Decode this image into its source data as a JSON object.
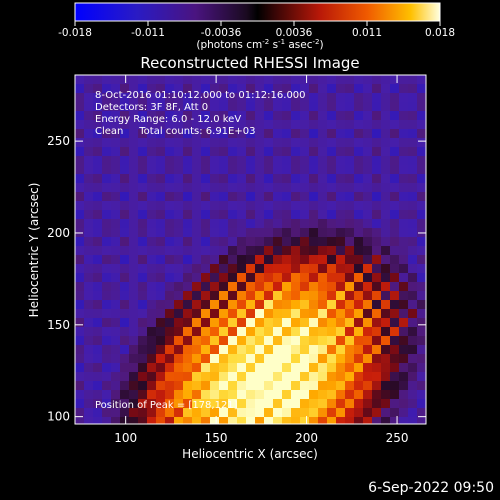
{
  "chart_data": {
    "type": "heatmap",
    "title": "Reconstructed RHESSI Image",
    "xlabel": "Heliocentric X (arcsec)",
    "ylabel": "Heliocentric Y (arcsec)",
    "xlim": [
      72,
      266
    ],
    "ylim": [
      96,
      286
    ],
    "x_ticks": [
      100,
      150,
      200,
      250
    ],
    "y_ticks": [
      100,
      150,
      200,
      250
    ],
    "colorbar": {
      "range": [
        -0.018,
        0.018
      ],
      "ticks": [
        "-0.018",
        "-0.011",
        "-0.0036",
        "0.0036",
        "0.011",
        "0.018"
      ],
      "label": "(photons cm-2 s-1 asec-2)",
      "label_parts": {
        "base": "(photons cm",
        "e1": "-2",
        "mid1": " s",
        "e2": "-1",
        "mid2": " asec",
        "e3": "-2",
        "end": ")"
      }
    },
    "annotations": [
      "8-Oct-2016 01:10:12.000 to 01:12:16.000",
      "Detectors: 3F 8F, Att 0",
      "Energy Range: 6.0 - 12.0 keV",
      "Clean     Total counts: 6.91E+03"
    ],
    "peak_label": "Position of Peak = [178,121]",
    "peak": [
      178,
      121
    ],
    "grid": false
  },
  "footer": "6-Sep-2022 09:50"
}
